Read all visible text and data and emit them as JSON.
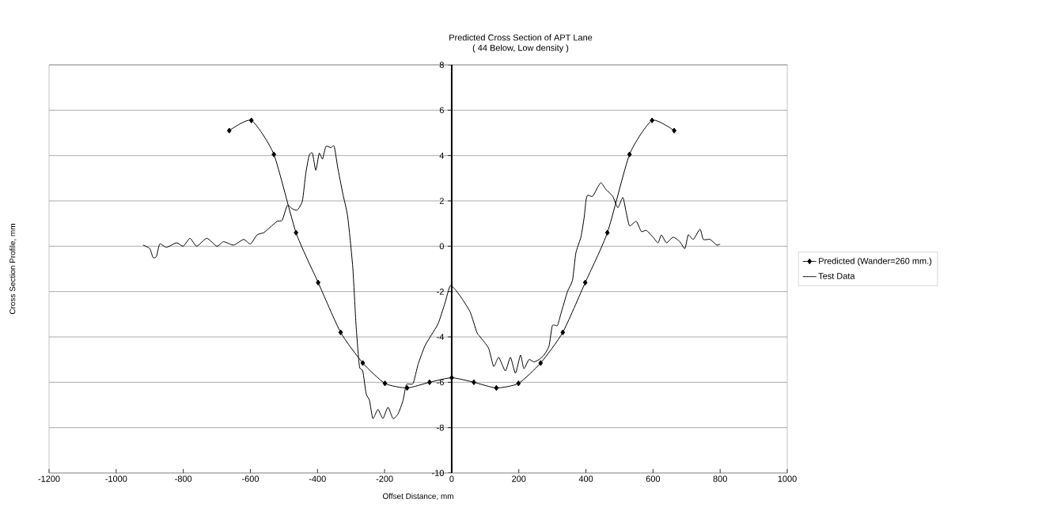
{
  "chart_data": {
    "type": "line",
    "title": "Predicted Cross Section of APT Lane",
    "subtitle": "( 44 Below, Low density )",
    "xlabel": "Offset Distance, mm",
    "ylabel": "Cross Section Profile, mm",
    "xlim": [
      -1200,
      1000
    ],
    "xticks": [
      -1200,
      -1000,
      -800,
      -600,
      -400,
      -200,
      0,
      200,
      400,
      600,
      800,
      1000
    ],
    "ylim": [
      -10,
      8
    ],
    "yticks": [
      -10,
      -8,
      -6,
      -4,
      -2,
      0,
      2,
      4,
      6,
      8
    ],
    "grid": "y",
    "legend": "right",
    "series": [
      {
        "name": "Predicted (Wander=260 mm.)",
        "color": "#000000",
        "marker": "diamond",
        "x": [
          -663,
          -597,
          -530,
          -464,
          -398,
          -331,
          -265,
          -199,
          -133,
          -66,
          0,
          66,
          133,
          199,
          265,
          331,
          398,
          464,
          530,
          597,
          663
        ],
        "values": [
          5.1,
          5.55,
          4.05,
          0.6,
          -1.6,
          -3.8,
          -5.15,
          -6.05,
          -6.25,
          -6.0,
          -5.8,
          -6.0,
          -6.25,
          -6.05,
          -5.15,
          -3.8,
          -1.6,
          0.6,
          4.05,
          5.55,
          5.1
        ]
      },
      {
        "name": "Test Data",
        "color": "#000000",
        "marker": "none",
        "x": [
          -920,
          -900,
          -890,
          -880,
          -870,
          -850,
          -820,
          -800,
          -780,
          -760,
          -730,
          -700,
          -680,
          -650,
          -620,
          -600,
          -580,
          -560,
          -540,
          -520,
          -505,
          -490,
          -475,
          -460,
          -445,
          -435,
          -425,
          -415,
          -405,
          -395,
          -385,
          -375,
          -360,
          -350,
          -340,
          -325,
          -310,
          -295,
          -285,
          -275,
          -265,
          -255,
          -245,
          -235,
          -220,
          -205,
          -190,
          -175,
          -160,
          -145,
          -135,
          -115,
          -100,
          -80,
          -60,
          -40,
          -20,
          -5,
          10,
          30,
          55,
          75,
          85,
          110,
          125,
          140,
          160,
          175,
          190,
          205,
          215,
          230,
          245,
          260,
          275,
          290,
          300,
          315,
          325,
          345,
          360,
          370,
          385,
          395,
          400,
          405,
          420,
          435,
          445,
          460,
          480,
          495,
          510,
          520,
          530,
          550,
          565,
          580,
          600,
          615,
          625,
          640,
          660,
          680,
          695,
          705,
          720,
          740,
          750,
          770,
          790,
          800
        ],
        "values": [
          0.05,
          -0.1,
          -0.5,
          -0.45,
          0.1,
          -0.05,
          0.15,
          0.0,
          0.35,
          0.0,
          0.35,
          0.0,
          0.2,
          0.05,
          0.3,
          0.1,
          0.5,
          0.6,
          0.85,
          1.1,
          1.15,
          1.8,
          1.65,
          1.6,
          2.0,
          3.2,
          4.0,
          4.1,
          3.35,
          4.1,
          3.85,
          4.4,
          4.35,
          4.4,
          3.5,
          2.35,
          1.3,
          -0.9,
          -3.5,
          -5.3,
          -5.5,
          -6.5,
          -6.8,
          -7.6,
          -7.2,
          -7.6,
          -7.1,
          -7.6,
          -7.4,
          -6.8,
          -6.1,
          -6.05,
          -5.2,
          -4.4,
          -3.9,
          -3.4,
          -2.5,
          -1.75,
          -1.9,
          -2.3,
          -2.9,
          -3.8,
          -4.0,
          -4.5,
          -5.3,
          -4.9,
          -5.5,
          -4.9,
          -5.6,
          -4.8,
          -5.4,
          -5.0,
          -5.1,
          -5.0,
          -4.8,
          -4.4,
          -3.5,
          -3.5,
          -3.0,
          -2.0,
          -1.5,
          -0.3,
          0.4,
          1.3,
          2.0,
          2.25,
          2.2,
          2.6,
          2.8,
          2.5,
          2.2,
          1.7,
          2.15,
          1.5,
          0.9,
          1.1,
          0.65,
          0.7,
          0.4,
          0.15,
          0.5,
          0.15,
          0.4,
          0.2,
          -0.1,
          0.5,
          0.3,
          0.75,
          0.3,
          0.3,
          0.05,
          0.1
        ]
      }
    ]
  }
}
